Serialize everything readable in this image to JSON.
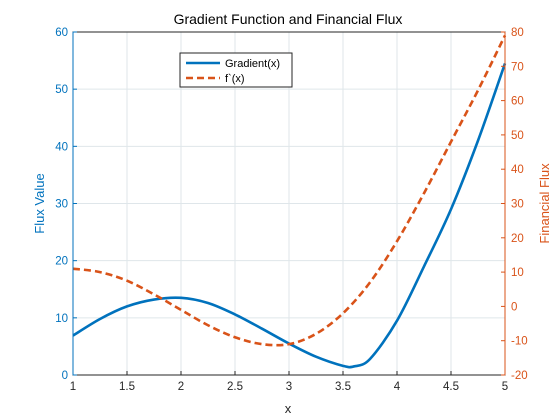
{
  "chart_data": {
    "type": "line",
    "title": "Gradient Function and Financial Flux",
    "xlabel": "x",
    "xlim": [
      1,
      5
    ],
    "x_ticks": [
      "1",
      "1.5",
      "2",
      "2.5",
      "3",
      "3.5",
      "4",
      "4.5",
      "5"
    ],
    "grid": true,
    "legend_position": "top-center",
    "y_left": {
      "label": "Flux Value",
      "lim": [
        0,
        60
      ],
      "ticks": [
        "0",
        "10",
        "20",
        "30",
        "40",
        "50",
        "60"
      ],
      "color": "#0072BD"
    },
    "y_right": {
      "label": "Financial Flux",
      "lim": [
        -20,
        80
      ],
      "ticks": [
        "-20",
        "-10",
        "0",
        "10",
        "20",
        "30",
        "40",
        "50",
        "60",
        "70",
        "80"
      ],
      "color": "#D95319"
    },
    "series": [
      {
        "name": "Gradient(x)",
        "axis": "left",
        "color": "#0072BD",
        "style": "solid",
        "x": [
          1.0,
          1.25,
          1.5,
          1.75,
          2.0,
          2.25,
          2.5,
          2.75,
          3.0,
          3.25,
          3.5,
          3.6,
          3.75,
          4.0,
          4.25,
          4.5,
          4.75,
          5.0
        ],
        "y": [
          6.9,
          9.8,
          12.0,
          13.2,
          13.5,
          12.6,
          10.6,
          8.1,
          5.5,
          3.2,
          1.6,
          1.5,
          2.8,
          9.5,
          19.0,
          29.0,
          41.0,
          54.5
        ]
      },
      {
        "name": "f`(x)",
        "axis": "right",
        "color": "#D95319",
        "style": "dashed",
        "x": [
          1.0,
          1.25,
          1.5,
          1.75,
          2.0,
          2.25,
          2.5,
          2.75,
          3.0,
          3.25,
          3.5,
          3.75,
          4.0,
          4.25,
          4.5,
          4.75,
          5.0
        ],
        "y": [
          11.0,
          10.0,
          7.5,
          3.5,
          -1.0,
          -5.5,
          -9.0,
          -11.0,
          -11.0,
          -8.0,
          -2.0,
          7.0,
          19.0,
          33.0,
          48.0,
          63.0,
          79.0
        ]
      }
    ]
  }
}
